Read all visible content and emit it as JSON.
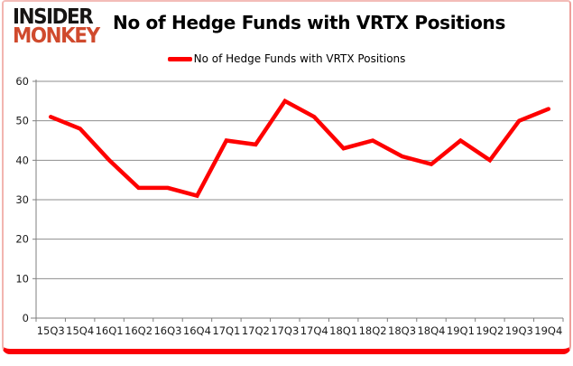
{
  "brand": {
    "line1": "INSIDER",
    "line2": "MONKEY",
    "line1_color": "#161413",
    "line2_color": "#d04a2d"
  },
  "header": {
    "title": "No of Hedge Funds with VRTX Positions"
  },
  "legend": {
    "label": "No of Hedge Funds with VRTX Positions",
    "swatch_color": "#fe0000"
  },
  "chart_data": {
    "type": "line",
    "title": "No of Hedge Funds with VRTX Positions",
    "categories": [
      "15Q3",
      "15Q4",
      "16Q1",
      "16Q2",
      "16Q3",
      "16Q4",
      "17Q1",
      "17Q2",
      "17Q3",
      "17Q4",
      "18Q1",
      "18Q2",
      "18Q3",
      "18Q4",
      "19Q1",
      "19Q2",
      "19Q3",
      "19Q4"
    ],
    "series": [
      {
        "name": "No of Hedge Funds with VRTX Positions",
        "color": "#fe0000",
        "values": [
          51,
          48,
          40,
          33,
          33,
          31,
          45,
          44,
          55,
          51,
          43,
          45,
          41,
          39,
          45,
          40,
          50,
          53
        ]
      }
    ],
    "ylim": [
      0,
      60
    ],
    "ytick_interval": 10,
    "yticks": [
      0,
      10,
      20,
      30,
      40,
      50,
      60
    ],
    "grid": true,
    "gridline_color": "#8e8e8e",
    "axis_color": "#7f7f7f",
    "legend_position": "top-center"
  }
}
